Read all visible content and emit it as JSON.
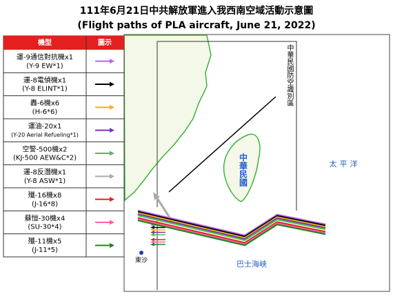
{
  "title": "111年6月21日中共解放軍進入我西南空域活動示意圖",
  "subtitle": "(Flight paths of PLA aircraft, June 21, 2022)",
  "legend": {
    "header": [
      "機型",
      "圖示"
    ],
    "rows": [
      {
        "label": "運-9通信對抗機x1",
        "sublabel": "(Y-9 EW*1)",
        "color": "#b565f0"
      },
      {
        "label": "運-8電偵機x1",
        "sublabel": "(Y-8 ELINT*1)",
        "color": "#000000"
      },
      {
        "label": "轟-6機x6",
        "sublabel": "(H-6*6)",
        "color": "#f4b400"
      },
      {
        "label": "運油-20x1",
        "sublabel": "(Y-20 Aerial Refueling*1)",
        "color": "#7a2fc0"
      },
      {
        "label": "空警-500機x2",
        "sublabel": "(KJ-500 AEW&C*2)",
        "color": "#4cc04c"
      },
      {
        "label": "運-8反潛機x1",
        "sublabel": "(Y-8 ASW*1)",
        "color": "#aaaaaa"
      },
      {
        "label": "殲-16機x8",
        "sublabel": "(J-16*8)",
        "color": "#e02020"
      },
      {
        "label": "蘇愷-30機x4",
        "sublabel": "(SU-30*4)",
        "color": "#ff5fa8"
      },
      {
        "label": "殲-11機x5",
        "sublabel": "(J-11*5)",
        "color": "#1a8a1a"
      }
    ]
  },
  "map_labels": {
    "adiz": "中華民國防空識別區",
    "taiwan": "中華民國",
    "pacific": "太平洋",
    "bashi": "巴士海峽",
    "dongsha": "東沙"
  }
}
